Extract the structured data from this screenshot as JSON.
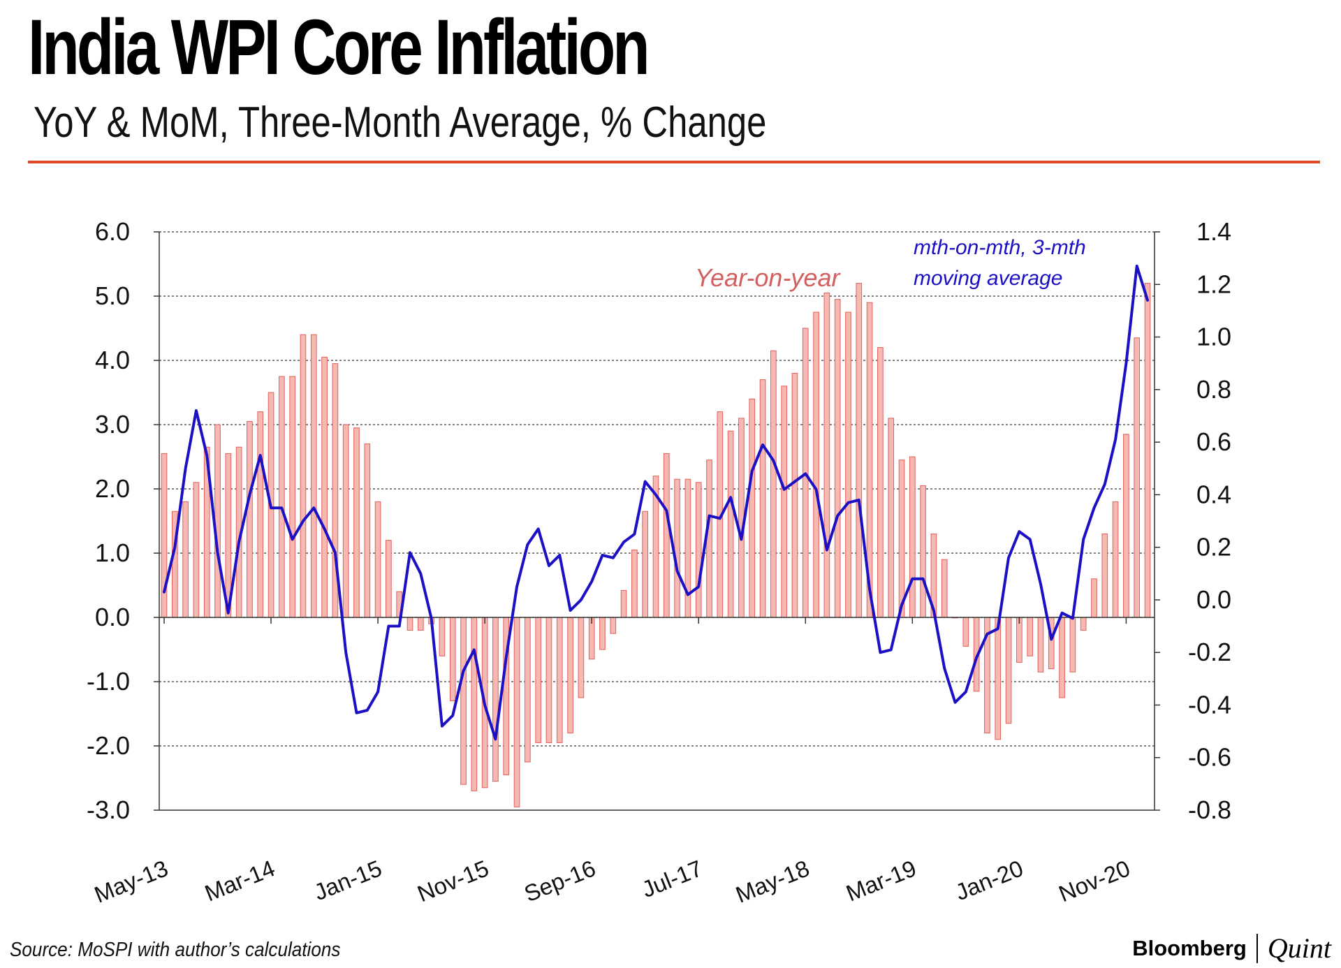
{
  "header": {
    "title": "India WPI Core Inflation",
    "subtitle": "YoY & MoM, Three-Month Average, % Change"
  },
  "footer": {
    "source": "Source: MoSPI with author’s calculations",
    "brand_primary": "Bloomberg",
    "brand_secondary": "Quint"
  },
  "colors": {
    "accent_rule": "#e04a2c",
    "bar_fill": "#f6b8b3",
    "bar_stroke": "#e2605a",
    "line": "#1c10c4",
    "yoy_label": "#d26060"
  },
  "chart_data": {
    "type": "bar+line",
    "title": "India WPI Core Inflation",
    "subtitle": "YoY & MoM, Three-Month Average, % Change",
    "x_tick_labels": [
      "May-13",
      "Mar-14",
      "Jan-15",
      "Nov-15",
      "Sep-16",
      "Jul-17",
      "May-18",
      "Mar-19",
      "Jan-20",
      "Nov-20"
    ],
    "x_start": "May-13",
    "x_end": "Feb-21",
    "left_axis": {
      "min": -3.0,
      "max": 6.0,
      "ticks": [
        6.0,
        5.0,
        4.0,
        3.0,
        2.0,
        1.0,
        0.0,
        -1.0,
        -2.0,
        -3.0
      ],
      "tick_labels": [
        "6.0",
        "5.0",
        "4.0",
        "3.0",
        "2.0",
        "1.0",
        "0.0",
        "-1.0",
        "-2.0",
        "-3.0"
      ]
    },
    "right_axis": {
      "min": -0.8,
      "max": 1.4,
      "ticks": [
        1.4,
        1.2,
        1.0,
        0.8,
        0.6,
        0.4,
        0.2,
        0.0,
        -0.2,
        -0.4,
        -0.6,
        -0.8
      ],
      "tick_labels": [
        "1.4",
        "1.2",
        "1.0",
        "0.8",
        "0.6",
        "0.4",
        "0.2",
        "0.0",
        "-0.2",
        "-0.4",
        "-0.6",
        "-0.8"
      ]
    },
    "gridlines": "horizontal dashed",
    "series": [
      {
        "name": "Year-on-year",
        "type": "bar",
        "axis": "left",
        "values": [
          2.55,
          1.65,
          1.8,
          2.1,
          2.65,
          3.0,
          2.55,
          2.65,
          3.05,
          3.2,
          3.5,
          3.75,
          3.75,
          4.4,
          4.4,
          4.05,
          3.95,
          3.0,
          2.95,
          2.7,
          1.8,
          1.2,
          0.4,
          -0.2,
          -0.2,
          -0.1,
          -0.6,
          -1.3,
          -2.6,
          -2.7,
          -2.65,
          -2.55,
          -2.45,
          -2.95,
          -2.25,
          -1.95,
          -1.95,
          -1.95,
          -1.8,
          -1.25,
          -0.65,
          -0.5,
          -0.25,
          0.42,
          1.05,
          1.65,
          2.2,
          2.55,
          2.15,
          2.15,
          2.1,
          2.45,
          3.2,
          2.9,
          3.1,
          3.4,
          3.7,
          4.15,
          3.6,
          3.8,
          4.5,
          4.75,
          5.05,
          4.95,
          4.75,
          5.2,
          4.9,
          4.2,
          3.1,
          2.45,
          2.5,
          2.05,
          1.3,
          0.9,
          0.0,
          -0.45,
          -1.15,
          -1.8,
          -1.9,
          -1.65,
          -0.7,
          -0.6,
          -0.85,
          -0.8,
          -1.25,
          -0.85,
          -0.2,
          0.6,
          1.3,
          1.8,
          2.85,
          4.35,
          5.2
        ]
      },
      {
        "name": "mth-on-mth, 3-mth moving average",
        "type": "line",
        "axis": "right",
        "values": [
          0.03,
          0.2,
          0.5,
          0.72,
          0.55,
          0.18,
          -0.05,
          0.22,
          0.4,
          0.55,
          0.35,
          0.35,
          0.23,
          0.3,
          0.35,
          0.27,
          0.18,
          -0.2,
          -0.43,
          -0.42,
          -0.35,
          -0.1,
          -0.1,
          0.18,
          0.1,
          -0.07,
          -0.48,
          -0.44,
          -0.27,
          -0.19,
          -0.4,
          -0.53,
          -0.22,
          0.05,
          0.21,
          0.27,
          0.13,
          0.17,
          -0.04,
          0.0,
          0.07,
          0.17,
          0.16,
          0.22,
          0.25,
          0.45,
          0.4,
          0.34,
          0.11,
          0.02,
          0.05,
          0.32,
          0.31,
          0.39,
          0.23,
          0.49,
          0.59,
          0.53,
          0.42,
          0.45,
          0.48,
          0.42,
          0.19,
          0.32,
          0.37,
          0.38,
          0.04,
          -0.2,
          -0.19,
          -0.02,
          0.08,
          0.08,
          -0.04,
          -0.26,
          -0.39,
          -0.35,
          -0.22,
          -0.13,
          -0.11,
          0.16,
          0.26,
          0.23,
          0.06,
          -0.15,
          -0.05,
          -0.07,
          0.23,
          0.35,
          0.44,
          0.61,
          0.9,
          1.27,
          1.14
        ]
      }
    ],
    "annotations": [
      {
        "text": "Year-on-year",
        "series": "Year-on-year"
      },
      {
        "text": "mth-on-mth, 3-mth",
        "series": "mth-on-mth, 3-mth moving average"
      },
      {
        "text": "moving average",
        "series": "mth-on-mth, 3-mth moving average"
      }
    ]
  }
}
